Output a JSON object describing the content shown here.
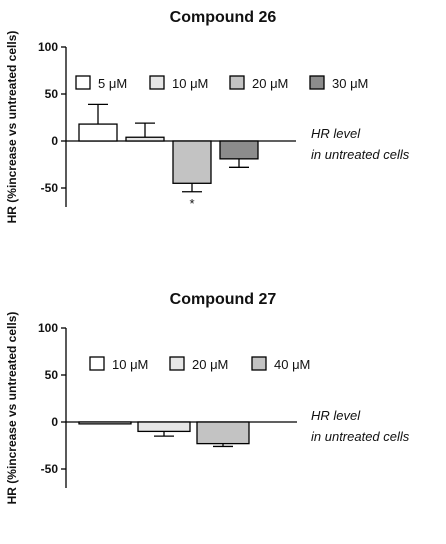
{
  "chart_data": [
    {
      "type": "bar",
      "title": "Compound 26",
      "ylabel": "HR (%increase vs untreated cells)",
      "ylim": [
        -70,
        100
      ],
      "yticks": [
        100,
        50,
        0,
        -50
      ],
      "annotation": [
        "HR level",
        "in untreated cells"
      ],
      "series": [
        {
          "name": "5 μM",
          "value": 18,
          "error": 21,
          "color": "#ffffff"
        },
        {
          "name": "10 μM",
          "value": 4,
          "error": 15,
          "color": "#e6e6e6"
        },
        {
          "name": "20 μM",
          "value": -45,
          "error": 9,
          "color": "#c3c3c3",
          "significance": "*"
        },
        {
          "name": "30 μM",
          "value": -19,
          "error": 9,
          "color": "#8c8c8c"
        }
      ]
    },
    {
      "type": "bar",
      "title": "Compound 27",
      "ylabel": "HR (%increase vs untreated cells)",
      "ylim": [
        -70,
        100
      ],
      "yticks": [
        100,
        50,
        0,
        -50
      ],
      "annotation": [
        "HR level",
        "in untreated cells"
      ],
      "series": [
        {
          "name": "10 μM",
          "value": -2,
          "error": 0,
          "color": "#ffffff"
        },
        {
          "name": "20 μM",
          "value": -10,
          "error": 5,
          "color": "#e6e6e6"
        },
        {
          "name": "40 μM",
          "value": -23,
          "error": 3,
          "color": "#c3c3c3"
        }
      ]
    }
  ]
}
